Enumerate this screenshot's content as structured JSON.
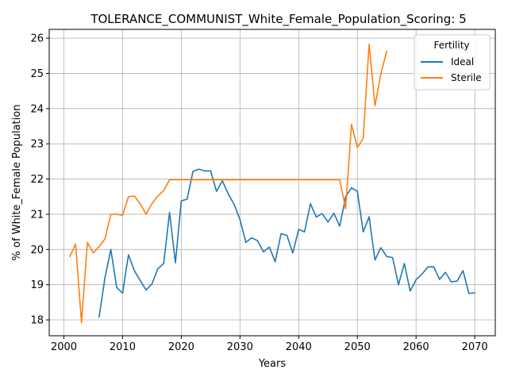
{
  "chart_data": {
    "type": "line",
    "title": "TOLERANCE_COMMUNIST_White_Female_Population_Scoring: 5",
    "xlabel": "Years",
    "ylabel": "% of White_Female Population",
    "xlim": [
      1997.5,
      2073.5
    ],
    "ylim": [
      17.55,
      26.25
    ],
    "x_ticks": [
      2000,
      2010,
      2020,
      2030,
      2040,
      2050,
      2060,
      2070
    ],
    "y_ticks": [
      18,
      19,
      20,
      21,
      22,
      23,
      24,
      25,
      26
    ],
    "grid": true,
    "legend": {
      "title": "Fertility",
      "placement": "top-right"
    },
    "series": [
      {
        "name": "Ideal",
        "color": "#1f77b4",
        "x": [
          2006,
          2007,
          2008,
          2009,
          2010,
          2011,
          2012,
          2013,
          2014,
          2015,
          2016,
          2017,
          2018,
          2019,
          2020,
          2021,
          2022,
          2023,
          2024,
          2025,
          2026,
          2027,
          2028,
          2029,
          2030,
          2031,
          2032,
          2033,
          2034,
          2035,
          2036,
          2037,
          2038,
          2039,
          2040,
          2041,
          2042,
          2043,
          2044,
          2045,
          2046,
          2047,
          2048,
          2049,
          2050,
          2051,
          2052,
          2053,
          2054,
          2055,
          2056,
          2057,
          2058,
          2059,
          2060,
          2061,
          2062,
          2063,
          2064,
          2065,
          2066,
          2067,
          2068,
          2069,
          2070
        ],
        "y": [
          18.08,
          19.2,
          20.0,
          18.92,
          18.76,
          19.85,
          19.4,
          19.12,
          18.85,
          19.02,
          19.45,
          19.6,
          21.05,
          19.62,
          21.38,
          21.43,
          22.22,
          22.28,
          22.23,
          22.23,
          21.65,
          21.95,
          21.58,
          21.28,
          20.85,
          20.2,
          20.33,
          20.25,
          19.93,
          20.07,
          19.65,
          20.45,
          20.4,
          19.9,
          20.57,
          20.5,
          21.3,
          20.92,
          21.02,
          20.78,
          21.03,
          20.66,
          21.5,
          21.75,
          21.65,
          20.5,
          20.93,
          19.7,
          20.05,
          19.8,
          19.77,
          19.0,
          19.6,
          18.82,
          19.14,
          19.3,
          19.5,
          19.51,
          19.15,
          19.35,
          19.08,
          19.1,
          19.4,
          18.75,
          18.77
        ]
      },
      {
        "name": "Sterile",
        "color": "#ff7f0e",
        "x": [
          2001,
          2002,
          2003,
          2004,
          2005,
          2006,
          2007,
          2008,
          2009,
          2010,
          2011,
          2012,
          2013,
          2014,
          2015,
          2016,
          2017,
          2018,
          2019,
          2020,
          2021,
          2022,
          2023,
          2024,
          2025,
          2026,
          2027,
          2028,
          2029,
          2030,
          2031,
          2032,
          2033,
          2034,
          2035,
          2036,
          2037,
          2038,
          2039,
          2040,
          2041,
          2042,
          2043,
          2044,
          2045,
          2046,
          2047,
          2048,
          2049,
          2050,
          2051,
          2052,
          2053,
          2054,
          2055
        ],
        "y": [
          19.8,
          20.15,
          17.92,
          20.2,
          19.9,
          20.08,
          20.3,
          21.0,
          21.0,
          20.97,
          21.5,
          21.52,
          21.3,
          21.0,
          21.3,
          21.52,
          21.67,
          21.98,
          21.98,
          21.98,
          21.98,
          21.98,
          21.98,
          21.98,
          21.98,
          21.98,
          21.98,
          21.98,
          21.98,
          21.98,
          21.98,
          21.98,
          21.98,
          21.98,
          21.98,
          21.98,
          21.98,
          21.98,
          21.98,
          21.98,
          21.98,
          21.98,
          21.98,
          21.98,
          21.98,
          21.98,
          21.98,
          21.15,
          23.55,
          22.9,
          23.15,
          25.83,
          24.08,
          24.98,
          25.63
        ]
      }
    ]
  }
}
